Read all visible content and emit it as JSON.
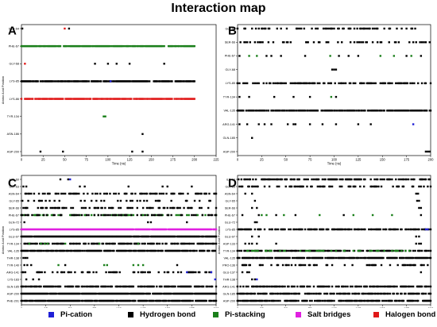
{
  "title": "Interaction map",
  "colors": {
    "pi_cation": "#1f1fd6",
    "hydrogen_bond": "#000000",
    "pi_stacking": "#1a7f1a",
    "salt_bridges": "#e020e0",
    "halogen_bond": "#e01818"
  },
  "legend": [
    {
      "label": "Pi-cation",
      "color": "#1f1fd6"
    },
    {
      "label": "Hydrogen bond",
      "color": "#000000"
    },
    {
      "label": "Pi-stacking",
      "color": "#1a7f1a"
    },
    {
      "label": "Salt bridges",
      "color": "#e020e0"
    },
    {
      "label": "Halogen bond",
      "color": "#e01818"
    }
  ],
  "chart_data": [
    {
      "panel": "A",
      "type": "scatter",
      "xlabel": "Time (ns)",
      "ylabel": "Amino Acid Position",
      "xlim": [
        0,
        225
      ],
      "x_ticks": [
        "0",
        "25",
        "50",
        "75",
        "100",
        "125",
        "150",
        "175",
        "200",
        "225"
      ],
      "residues": [
        "SER-64",
        "PHE-67",
        "GLY-68",
        "LYS-85",
        "LYS-86",
        "TYR-134",
        "ASN-186",
        "ASP-200"
      ],
      "series": [
        {
          "residue": "SER-64",
          "type": "hydrogen_bond",
          "x": [
            1,
            55
          ]
        },
        {
          "residue": "SER-64",
          "type": "halogen_bond",
          "x": [
            50
          ]
        },
        {
          "residue": "PHE-67",
          "type": "pi_stacking",
          "x_range": [
            0,
            200
          ],
          "density": 0.85
        },
        {
          "residue": "GLY-68",
          "type": "halogen_bond",
          "x": [
            4
          ]
        },
        {
          "residue": "GLY-68",
          "type": "hydrogen_bond",
          "x": [
            85,
            100,
            110,
            125,
            165
          ]
        },
        {
          "residue": "LYS-85",
          "type": "hydrogen_bond",
          "x_range": [
            0,
            200
          ],
          "density": 0.82
        },
        {
          "residue": "LYS-85",
          "type": "pi_cation",
          "x": [
            103
          ]
        },
        {
          "residue": "LYS-86",
          "type": "halogen_bond",
          "x_range": [
            0,
            200
          ],
          "density": 0.8
        },
        {
          "residue": "TYR-134",
          "type": "pi_stacking",
          "x": [
            95,
            97
          ]
        },
        {
          "residue": "ASN-186",
          "type": "hydrogen_bond",
          "x": [
            140
          ]
        },
        {
          "residue": "ASP-200",
          "type": "hydrogen_bond",
          "x": [
            22,
            48,
            128,
            140
          ]
        }
      ]
    },
    {
      "panel": "B",
      "type": "scatter",
      "xlabel": "Time (ns)",
      "ylabel": "",
      "xlim": [
        0,
        200
      ],
      "x_ticks": [
        "0",
        "25",
        "50",
        "75",
        "100",
        "125",
        "150",
        "175",
        "200"
      ],
      "residues": [
        "GLY-63",
        "SER-66",
        "PHE-67",
        "GLY-68",
        "LYS-85",
        "TYR-134",
        "VAL-135",
        "ARG-141",
        "GLN-185",
        "ASP-200"
      ],
      "series": [
        {
          "residue": "GLY-63",
          "type": "hydrogen_bond",
          "x_range": [
            0,
            200
          ],
          "density": 0.32
        },
        {
          "residue": "SER-66",
          "type": "hydrogen_bond",
          "x_range": [
            0,
            200
          ],
          "density": 0.28
        },
        {
          "residue": "PHE-67",
          "type": "pi_stacking",
          "x": [
            12,
            20,
            96,
            148,
            162,
            180
          ]
        },
        {
          "residue": "PHE-67",
          "type": "hydrogen_bond",
          "x": [
            2,
            30,
            35,
            45,
            70,
            105,
            115,
            125,
            175,
            190
          ]
        },
        {
          "residue": "GLY-68",
          "type": "hydrogen_bond",
          "x": [
            98,
            100,
            102
          ]
        },
        {
          "residue": "LYS-85",
          "type": "hydrogen_bond",
          "x_range": [
            0,
            200
          ],
          "density": 0.5
        },
        {
          "residue": "TYR-134",
          "type": "hydrogen_bond",
          "x": [
            2,
            12,
            38,
            58,
            75,
            102
          ]
        },
        {
          "residue": "TYR-134",
          "type": "pi_stacking",
          "x": [
            97
          ]
        },
        {
          "residue": "VAL-135",
          "type": "hydrogen_bond",
          "x_range": [
            0,
            200
          ],
          "density": 0.8
        },
        {
          "residue": "ARG-141",
          "type": "hydrogen_bond",
          "x": [
            2,
            10,
            22,
            28,
            35,
            52,
            58,
            60,
            75,
            88,
            102,
            125,
            138
          ]
        },
        {
          "residue": "ARG-141",
          "type": "pi_cation",
          "x": [
            182
          ]
        },
        {
          "residue": "GLN-185",
          "type": "hydrogen_bond",
          "x": [
            15
          ]
        },
        {
          "residue": "ASP-200",
          "type": "hydrogen_bond",
          "x": [
            195,
            197,
            199
          ]
        }
      ]
    },
    {
      "panel": "C",
      "type": "scatter",
      "xlabel": "Time (ns)",
      "ylabel": "Amino Acid Position",
      "xlim": [
        0,
        200
      ],
      "x_ticks": [
        "0",
        "25",
        "50",
        "75",
        "100",
        "125",
        "150",
        "175",
        "200"
      ],
      "residues": [
        "LYS-60",
        "GLY-63",
        "ASN-64",
        "GLY-65",
        "SER-66",
        "PHE-67",
        "GLN-72",
        "LYS-85",
        "GLU-97",
        "TYR-134",
        "VAL-135",
        "THR-138",
        "TYR-140",
        "ARG-141",
        "LYS-183",
        "GLN-185",
        "ASP-200",
        "PHE-201"
      ],
      "series": [
        {
          "residue": "LYS-60",
          "type": "hydrogen_bond",
          "x": [
            40,
            48
          ]
        },
        {
          "residue": "LYS-60",
          "type": "pi_cation",
          "x": [
            50
          ]
        },
        {
          "residue": "GLY-63",
          "type": "hydrogen_bond",
          "x": [
            2,
            5,
            60,
            65,
            110,
            145,
            150,
            175
          ]
        },
        {
          "residue": "ASN-64",
          "type": "hydrogen_bond",
          "x_range": [
            0,
            200
          ],
          "density": 0.4
        },
        {
          "residue": "GLY-65",
          "type": "hydrogen_bond",
          "x_range": [
            0,
            200
          ],
          "density": 0.25
        },
        {
          "residue": "SER-66",
          "type": "hydrogen_bond",
          "x_range": [
            0,
            200
          ],
          "density": 0.35
        },
        {
          "residue": "PHE-67",
          "type": "pi_stacking",
          "x_range": [
            0,
            200
          ],
          "density": 0.35
        },
        {
          "residue": "PHE-67",
          "type": "hydrogen_bond",
          "x_range": [
            0,
            200
          ],
          "density": 0.3
        },
        {
          "residue": "GLN-72",
          "type": "hydrogen_bond",
          "x": [
            3,
            130,
            133,
            170
          ]
        },
        {
          "residue": "LYS-85",
          "type": "salt_bridges",
          "x_range": [
            0,
            200
          ],
          "density": 0.98
        },
        {
          "residue": "GLU-97",
          "type": "hydrogen_bond",
          "x_range": [
            0,
            200
          ],
          "density": 0.95
        },
        {
          "residue": "TYR-134",
          "type": "hydrogen_bond",
          "x_range": [
            0,
            200
          ],
          "density": 0.55
        },
        {
          "residue": "TYR-134",
          "type": "pi_stacking",
          "x": [
            8,
            20,
            24,
            27,
            45,
            80,
            120
          ]
        },
        {
          "residue": "VAL-135",
          "type": "hydrogen_bond",
          "x_range": [
            0,
            200
          ],
          "density": 0.85
        },
        {
          "residue": "THR-138",
          "type": "hydrogen_bond",
          "x": [
            2,
            4,
            6
          ]
        },
        {
          "residue": "TYR-140",
          "type": "pi_stacking",
          "x": [
            38,
            85,
            88,
            115,
            120,
            125
          ]
        },
        {
          "residue": "TYR-140",
          "type": "hydrogen_bond",
          "x": [
            3,
            6,
            10,
            45,
            160
          ]
        },
        {
          "residue": "ARG-141",
          "type": "hydrogen_bond",
          "x_range": [
            0,
            200
          ],
          "density": 0.3
        },
        {
          "residue": "ARG-141",
          "type": "pi_cation",
          "x": [
            170,
            195
          ]
        },
        {
          "residue": "LYS-183",
          "type": "hydrogen_bond",
          "x": [
            5,
            12,
            18
          ]
        },
        {
          "residue": "LYS-183",
          "type": "pi_cation",
          "x": [
            199
          ]
        },
        {
          "residue": "GLN-185",
          "type": "hydrogen_bond",
          "x_range": [
            0,
            200
          ],
          "density": 0.75
        },
        {
          "residue": "ASP-200",
          "type": "hydrogen_bond",
          "x_range": [
            0,
            200
          ],
          "density": 0.95
        },
        {
          "residue": "PHE-201",
          "type": "hydrogen_bond",
          "x_range": [
            0,
            200
          ],
          "density": 0.85
        }
      ]
    },
    {
      "panel": "D",
      "type": "scatter",
      "xlabel": "Time (ns)",
      "ylabel": "Amino Acid Position",
      "xlim": [
        0,
        200
      ],
      "x_ticks": [
        "0",
        "25",
        "50",
        "75",
        "100",
        "125",
        "150",
        "175",
        "200"
      ],
      "residues": [
        "ILE-62",
        "GLY-63",
        "ASN-64",
        "GLY-65",
        "SER-66",
        "PHE-67",
        "GLU-72",
        "LYS-85",
        "GLU-97",
        "ASP-133",
        "TYR-134",
        "VAL-135",
        "PRO-136",
        "GLU-137",
        "THR-138",
        "ARG-141",
        "GLN-185",
        "ASP-200"
      ],
      "series": [
        {
          "residue": "ILE-62",
          "type": "hydrogen_bond",
          "x_range": [
            0,
            200
          ],
          "density": 0.6
        },
        {
          "residue": "GLY-63",
          "type": "hydrogen_bond",
          "x_range": [
            0,
            200
          ],
          "density": 0.35
        },
        {
          "residue": "ASN-64",
          "type": "hydrogen_bond",
          "x": [
            8,
            15,
            185,
            187
          ]
        },
        {
          "residue": "GLY-65",
          "type": "hydrogen_bond",
          "x": [
            18,
            186,
            188
          ]
        },
        {
          "residue": "SER-66",
          "type": "hydrogen_bond",
          "x": [
            15,
            20,
            188,
            190
          ]
        },
        {
          "residue": "PHE-67",
          "type": "hydrogen_bond",
          "x": [
            5,
            22,
            40,
            60,
            110,
            190
          ]
        },
        {
          "residue": "PHE-67",
          "type": "pi_stacking",
          "x": [
            25,
            30,
            48,
            85,
            120,
            140,
            160
          ]
        },
        {
          "residue": "GLU-72",
          "type": "hydrogen_bond",
          "x": [
            18,
            20
          ]
        },
        {
          "residue": "LYS-85",
          "type": "hydrogen_bond",
          "x_range": [
            0,
            200
          ],
          "density": 0.6
        },
        {
          "residue": "LYS-85",
          "type": "pi_cation",
          "x": [
            195,
            197
          ]
        },
        {
          "residue": "GLU-97",
          "type": "hydrogen_bond",
          "x": [
            15,
            22,
            185,
            188
          ]
        },
        {
          "residue": "ASP-133",
          "type": "hydrogen_bond",
          "x": [
            8,
            12,
            15,
            20,
            40,
            185,
            188,
            190
          ]
        },
        {
          "residue": "TYR-134",
          "type": "hydrogen_bond",
          "x_range": [
            0,
            200
          ],
          "density": 0.65
        },
        {
          "residue": "TYR-134",
          "type": "pi_stacking",
          "x_range": [
            5,
            180
          ],
          "density": 0.25
        },
        {
          "residue": "VAL-135",
          "type": "hydrogen_bond",
          "x_range": [
            0,
            200
          ],
          "density": 0.8
        },
        {
          "residue": "PRO-136",
          "type": "hydrogen_bond",
          "x_range": [
            0,
            200
          ],
          "density": 0.3
        },
        {
          "residue": "GLU-137",
          "type": "hydrogen_bond",
          "x": [
            5,
            10,
            12,
            190
          ]
        },
        {
          "residue": "THR-138",
          "type": "hydrogen_bond",
          "x": [
            15,
            18
          ]
        },
        {
          "residue": "THR-138",
          "type": "pi_cation",
          "x": [
            20
          ]
        },
        {
          "residue": "ARG-141",
          "type": "hydrogen_bond",
          "x_range": [
            0,
            200
          ],
          "density": 0.55
        },
        {
          "residue": "GLN-185",
          "type": "hydrogen_bond",
          "x_range": [
            0,
            200
          ],
          "density": 0.7
        },
        {
          "residue": "ASP-200",
          "type": "hydrogen_bond",
          "x_range": [
            0,
            200
          ],
          "density": 0.75
        }
      ]
    }
  ]
}
